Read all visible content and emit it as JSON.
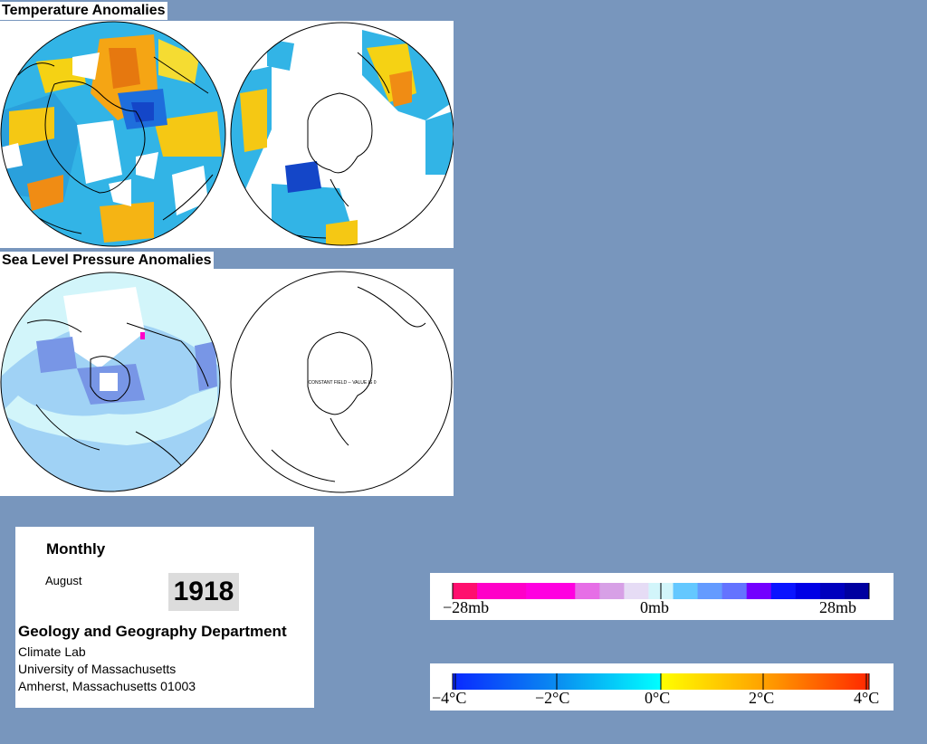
{
  "titles": {
    "temperature": "Temperature Anomalies",
    "pressure": "Sea Level Pressure Anomalies"
  },
  "pressure_map": {
    "south_note": "CONSTANT FIELD -- VALUE IS 0"
  },
  "info": {
    "period": "Monthly",
    "month": "August",
    "year": "1918",
    "department": "Geology and Geography Department",
    "line1": "Climate Lab",
    "line2": "University of Massachusetts",
    "line3": "Amherst, Massachusetts 01003"
  },
  "pressure_scale": {
    "labels": [
      "−28mb",
      "0mb",
      "28mb"
    ],
    "colors": [
      "#ff0f6e",
      "#ff00c8",
      "#ff00c8",
      "#ff00e0",
      "#ff00e0",
      "#e66ee6",
      "#d7a0e6",
      "#e6dcf5",
      "#d2f5fa",
      "#64c8ff",
      "#649bff",
      "#6473ff",
      "#7300ff",
      "#0a14ff",
      "#0000e6",
      "#0000be",
      "#0000a0"
    ]
  },
  "temperature_scale": {
    "labels": [
      "−4°C",
      "−2°C",
      "0°C",
      "2°C",
      "4°C"
    ],
    "range": [
      -4,
      4
    ]
  },
  "colors": {
    "background": "#7896bd",
    "ocean_light": "#d2f5fa",
    "pressure_fill": "#a0d2f5",
    "anomaly_warm": "#f5c814",
    "anomaly_cold": "#1464e6",
    "anomaly_neutral": "#32b4e6"
  }
}
